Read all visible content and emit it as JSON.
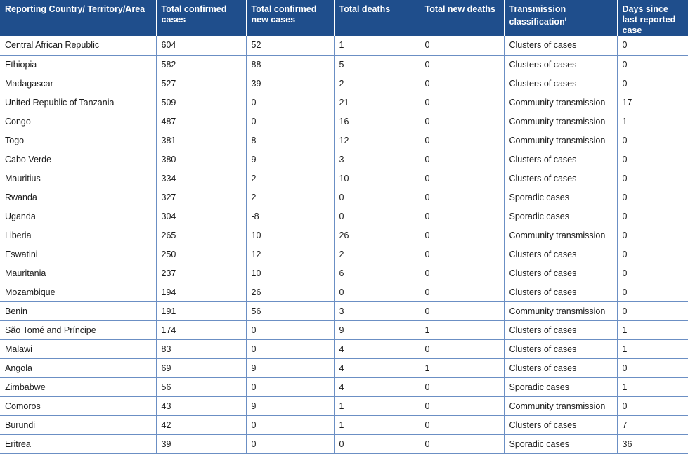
{
  "table": {
    "headers": [
      "Reporting Country/ Territory/Area",
      "Total confirmed cases",
      "Total confirmed new cases",
      "Total deaths",
      "Total new deaths",
      "Transmission classification",
      "Days since last reported case"
    ],
    "header_footnote_mark": "i",
    "rows": [
      [
        "Central African Republic",
        "604",
        "52",
        "1",
        "0",
        "Clusters of cases",
        "0"
      ],
      [
        "Ethiopia",
        "582",
        "88",
        "5",
        "0",
        "Clusters of cases",
        "0"
      ],
      [
        "Madagascar",
        "527",
        "39",
        "2",
        "0",
        "Clusters of cases",
        "0"
      ],
      [
        "United Republic of Tanzania",
        "509",
        "0",
        "21",
        "0",
        "Community transmission",
        "17"
      ],
      [
        "Congo",
        "487",
        "0",
        "16",
        "0",
        "Community transmission",
        "1"
      ],
      [
        "Togo",
        "381",
        "8",
        "12",
        "0",
        "Community transmission",
        "0"
      ],
      [
        "Cabo Verde",
        "380",
        "9",
        "3",
        "0",
        "Clusters of cases",
        "0"
      ],
      [
        "Mauritius",
        "334",
        "2",
        "10",
        "0",
        "Clusters of cases",
        "0"
      ],
      [
        "Rwanda",
        "327",
        "2",
        "0",
        "0",
        "Sporadic cases",
        "0"
      ],
      [
        "Uganda",
        "304",
        "-8",
        "0",
        "0",
        "Sporadic cases",
        "0"
      ],
      [
        "Liberia",
        "265",
        "10",
        "26",
        "0",
        "Community transmission",
        "0"
      ],
      [
        "Eswatini",
        "250",
        "12",
        "2",
        "0",
        "Clusters of cases",
        "0"
      ],
      [
        "Mauritania",
        "237",
        "10",
        "6",
        "0",
        "Clusters of cases",
        "0"
      ],
      [
        "Mozambique",
        "194",
        "26",
        "0",
        "0",
        "Clusters of cases",
        "0"
      ],
      [
        "Benin",
        "191",
        "56",
        "3",
        "0",
        "Community transmission",
        "0"
      ],
      [
        "São Tomé and Príncipe",
        "174",
        "0",
        "9",
        "1",
        "Clusters of cases",
        "1"
      ],
      [
        "Malawi",
        "83",
        "0",
        "4",
        "0",
        "Clusters of cases",
        "1"
      ],
      [
        "Angola",
        "69",
        "9",
        "4",
        "1",
        "Clusters of cases",
        "0"
      ],
      [
        "Zimbabwe",
        "56",
        "0",
        "4",
        "0",
        "Sporadic cases",
        "1"
      ],
      [
        "Comoros",
        "43",
        "9",
        "1",
        "0",
        "Community transmission",
        "0"
      ],
      [
        "Burundi",
        "42",
        "0",
        "1",
        "0",
        "Clusters of cases",
        "7"
      ],
      [
        "Eritrea",
        "39",
        "0",
        "0",
        "0",
        "Sporadic cases",
        "36"
      ]
    ]
  }
}
